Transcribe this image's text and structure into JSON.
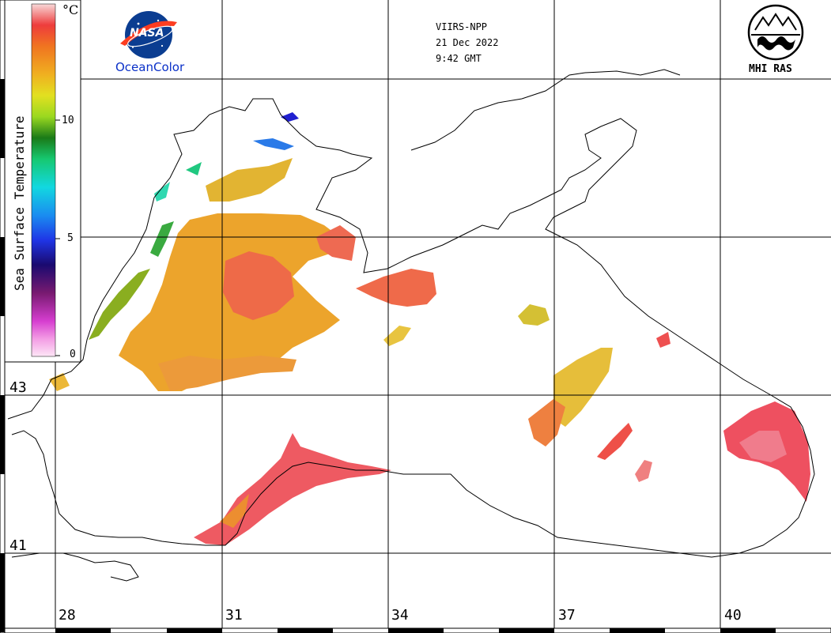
{
  "header": {
    "sensor": "VIIRS-NPP",
    "date": "21 Dec 2022",
    "time": "9:42 GMT"
  },
  "logos": {
    "nasa_text": "NASA",
    "nasa_sub": "OceanColor",
    "mhi": "MHI RAS"
  },
  "legend": {
    "title": "Sea Surface Temperature",
    "unit": "°C",
    "ticks": [
      "10",
      "5",
      "0"
    ]
  },
  "grid": {
    "lon_labels": [
      "28",
      "31",
      "34",
      "37",
      "40"
    ],
    "lat_labels": [
      "43",
      "41"
    ]
  },
  "colors": {
    "coast": "#000000",
    "grid": "#000000",
    "warm": "#f27a3c",
    "hot": "#ee4a54",
    "cool": "#e8c43a"
  }
}
